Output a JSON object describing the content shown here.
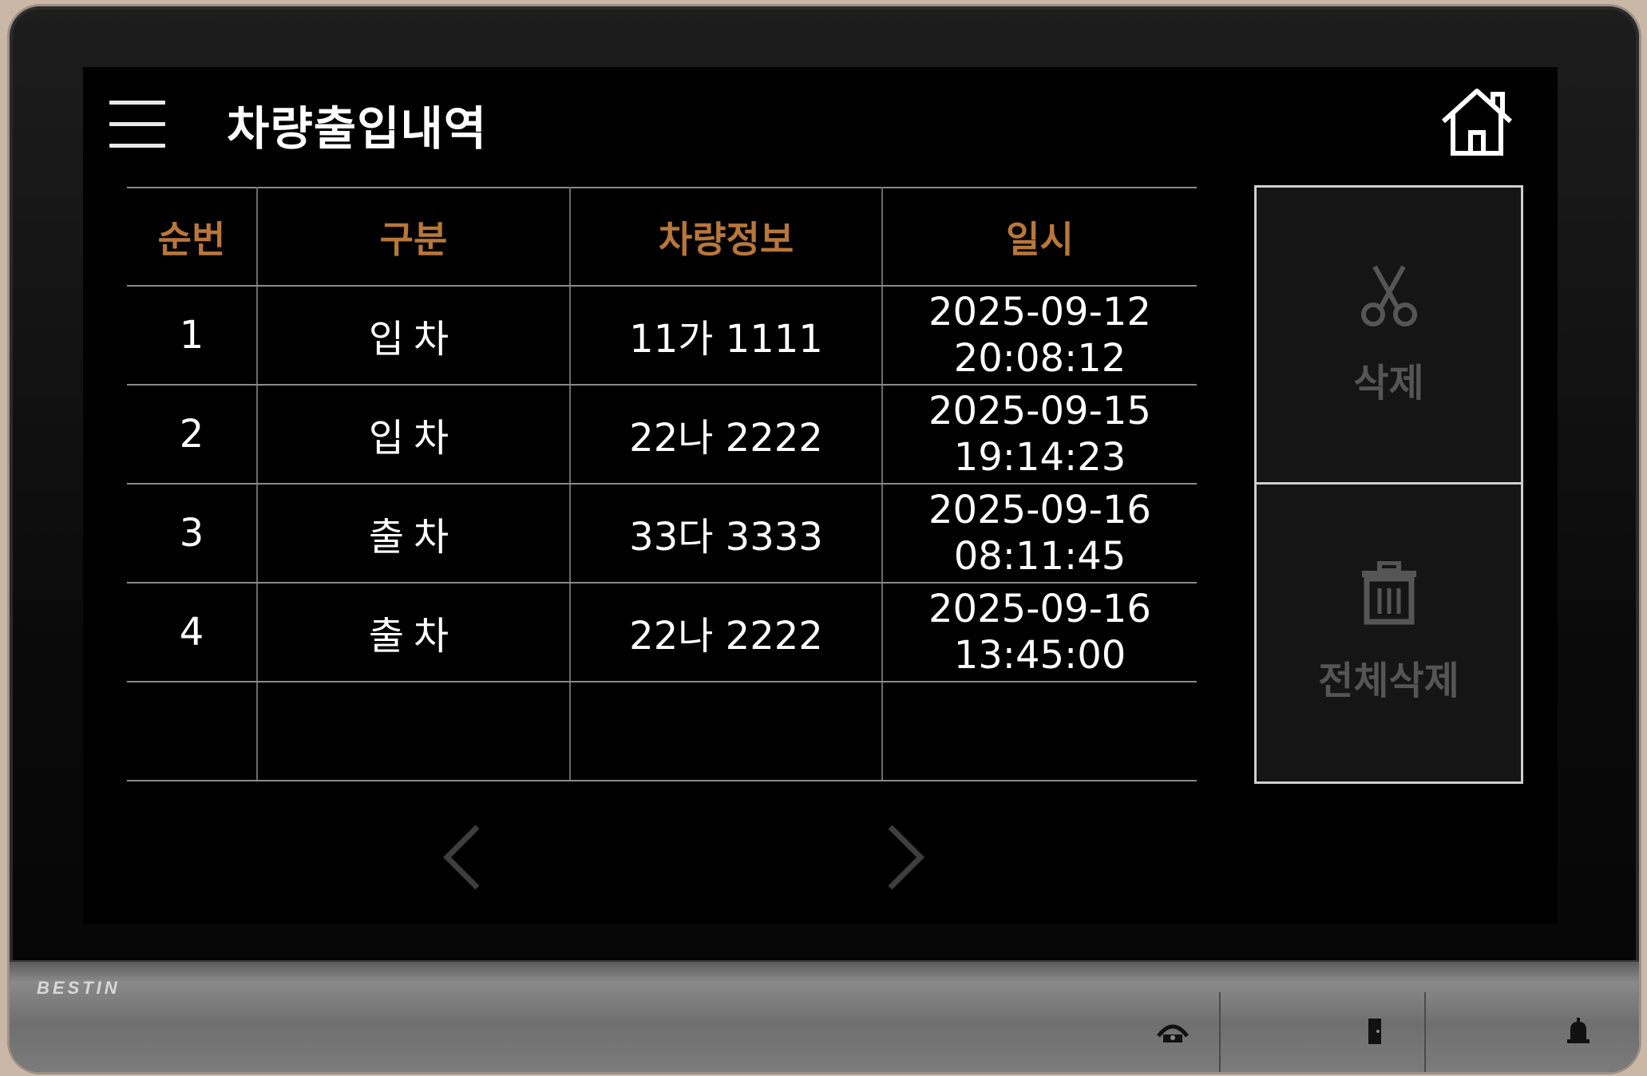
{
  "device": {
    "brand": "BESTIN"
  },
  "header": {
    "title": "차량출입내역",
    "menu_icon": "hamburger-menu-icon",
    "home_icon": "home-icon"
  },
  "table": {
    "columns": [
      "순번",
      "구분",
      "차량정보",
      "일시"
    ],
    "rows": [
      {
        "no": "1",
        "type": "입차",
        "plate": "11가 1111",
        "date": "2025-09-12",
        "time": "20:08:12"
      },
      {
        "no": "2",
        "type": "입차",
        "plate": "22나 2222",
        "date": "2025-09-15",
        "time": "19:14:23"
      },
      {
        "no": "3",
        "type": "출차",
        "plate": "33다 3333",
        "date": "2025-09-16",
        "time": "08:11:45"
      },
      {
        "no": "4",
        "type": "출차",
        "plate": "22나 2222",
        "date": "2025-09-16",
        "time": "13:45:00"
      },
      {
        "no": "",
        "type": "",
        "plate": "",
        "date": "",
        "time": ""
      }
    ]
  },
  "actions": {
    "delete_label": "삭제",
    "delete_all_label": "전체삭제"
  },
  "colors": {
    "header_text": "#b8773a",
    "disabled_text": "#555555"
  }
}
